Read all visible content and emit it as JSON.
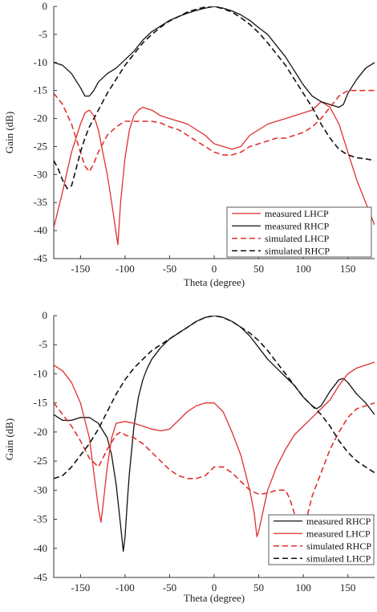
{
  "chart_data": [
    {
      "type": "line",
      "xlabel": "Theta (degree)",
      "ylabel": "Gain (dB)",
      "xlim": [
        -180,
        180
      ],
      "ylim": [
        -45,
        0
      ],
      "xticks": [
        -150,
        -100,
        -50,
        0,
        50,
        100,
        150
      ],
      "yticks": [
        0,
        -5,
        -10,
        -15,
        -20,
        -25,
        -30,
        -35,
        -40,
        -45
      ],
      "grid": false,
      "legend_position": "bottom-right",
      "series": [
        {
          "name": "measured LHCP",
          "color": "#e03030",
          "dash": "solid",
          "x": [
            -180,
            -170,
            -160,
            -150,
            -145,
            -140,
            -135,
            -130,
            -125,
            -120,
            -115,
            -110,
            -108,
            -105,
            -100,
            -95,
            -90,
            -85,
            -80,
            -70,
            -60,
            -50,
            -40,
            -30,
            -20,
            -10,
            0,
            10,
            20,
            30,
            40,
            50,
            60,
            70,
            80,
            90,
            100,
            110,
            120,
            130,
            140,
            150,
            160,
            170,
            180
          ],
          "y": [
            -39.5,
            -33,
            -26,
            -21,
            -19,
            -18.5,
            -19.5,
            -22,
            -26,
            -30,
            -35,
            -40.5,
            -42.5,
            -35,
            -27,
            -22,
            -19.5,
            -18.5,
            -18,
            -18.5,
            -19.5,
            -20,
            -20.5,
            -21,
            -22,
            -23,
            -24.5,
            -25,
            -25.5,
            -25,
            -23,
            -22,
            -21,
            -20.5,
            -20,
            -19.5,
            -19,
            -18.5,
            -17,
            -18,
            -21,
            -26,
            -31,
            -35,
            -39
          ]
        },
        {
          "name": "measured RHCP",
          "color": "#111111",
          "dash": "solid",
          "x": [
            -180,
            -170,
            -160,
            -150,
            -145,
            -140,
            -135,
            -130,
            -120,
            -110,
            -100,
            -90,
            -80,
            -70,
            -60,
            -50,
            -40,
            -30,
            -20,
            -10,
            0,
            10,
            20,
            30,
            40,
            50,
            60,
            70,
            80,
            90,
            100,
            110,
            120,
            130,
            140,
            145,
            150,
            160,
            170,
            180
          ],
          "y": [
            -10,
            -10.5,
            -12,
            -14.5,
            -16,
            -16,
            -15,
            -13.5,
            -12,
            -11,
            -9.5,
            -8,
            -6,
            -4.5,
            -3.5,
            -2.5,
            -1.8,
            -1.2,
            -0.7,
            -0.3,
            0,
            -0.3,
            -0.8,
            -1.5,
            -2.5,
            -3.8,
            -5,
            -7,
            -9,
            -11.5,
            -14,
            -16,
            -17,
            -17.5,
            -18,
            -17.5,
            -15.5,
            -13,
            -11,
            -10
          ]
        },
        {
          "name": "simulated LHCP",
          "color": "#e03030",
          "dash": "dashed",
          "x": [
            -180,
            -170,
            -160,
            -150,
            -145,
            -140,
            -135,
            -130,
            -120,
            -110,
            -100,
            -90,
            -80,
            -70,
            -60,
            -50,
            -40,
            -30,
            -20,
            -10,
            0,
            10,
            20,
            30,
            40,
            50,
            60,
            70,
            80,
            90,
            100,
            110,
            120,
            130,
            140,
            150,
            160,
            170,
            180
          ],
          "y": [
            -15.5,
            -17.5,
            -21,
            -26,
            -28.5,
            -29.5,
            -28,
            -26,
            -23,
            -21.5,
            -20.5,
            -20.5,
            -20.5,
            -20.5,
            -20.8,
            -21.5,
            -22,
            -23,
            -24,
            -25,
            -26,
            -26.5,
            -26.5,
            -26,
            -25,
            -24.5,
            -24,
            -23.5,
            -23.5,
            -23,
            -22.5,
            -21.5,
            -20,
            -18,
            -16,
            -15,
            -15,
            -15,
            -15
          ]
        },
        {
          "name": "simulated RHCP",
          "color": "#111111",
          "dash": "dashed",
          "x": [
            -180,
            -175,
            -170,
            -165,
            -160,
            -155,
            -150,
            -145,
            -140,
            -130,
            -120,
            -110,
            -100,
            -90,
            -80,
            -70,
            -60,
            -50,
            -40,
            -30,
            -20,
            -10,
            0,
            10,
            20,
            30,
            40,
            50,
            60,
            70,
            80,
            90,
            100,
            110,
            120,
            130,
            140,
            150,
            160,
            170,
            180
          ],
          "y": [
            -27.5,
            -29,
            -31,
            -32.5,
            -32,
            -29,
            -26,
            -23.5,
            -21.5,
            -18.5,
            -15.5,
            -13,
            -10.5,
            -8.5,
            -6.5,
            -5,
            -3.7,
            -2.6,
            -1.8,
            -1,
            -0.5,
            -0.1,
            0,
            -0.4,
            -1,
            -2,
            -3.2,
            -4.7,
            -6.5,
            -8.5,
            -10.5,
            -13,
            -15.5,
            -18,
            -21,
            -23.5,
            -25.5,
            -26.5,
            -27,
            -27.2,
            -27.5
          ]
        }
      ]
    },
    {
      "type": "line",
      "xlabel": "Theta (degree)",
      "ylabel": "Gain (dB)",
      "xlim": [
        -180,
        180
      ],
      "ylim": [
        -45,
        0
      ],
      "xticks": [
        -150,
        -100,
        -50,
        0,
        50,
        100,
        150
      ],
      "yticks": [
        0,
        -5,
        -10,
        -15,
        -20,
        -25,
        -30,
        -35,
        -40,
        -45
      ],
      "grid": false,
      "legend_position": "bottom-right",
      "series": [
        {
          "name": "measured RHCP",
          "color": "#111111",
          "dash": "solid",
          "x": [
            -180,
            -170,
            -160,
            -150,
            -140,
            -130,
            -120,
            -115,
            -110,
            -105,
            -102,
            -100,
            -97,
            -95,
            -90,
            -85,
            -80,
            -75,
            -70,
            -60,
            -50,
            -40,
            -30,
            -20,
            -10,
            0,
            10,
            20,
            30,
            40,
            50,
            60,
            70,
            80,
            90,
            100,
            110,
            115,
            120,
            130,
            140,
            145,
            150,
            160,
            170,
            180
          ],
          "y": [
            -17,
            -18,
            -18,
            -17.5,
            -17.5,
            -18.5,
            -21,
            -24,
            -29,
            -36,
            -40.5,
            -38,
            -31,
            -27,
            -19,
            -14,
            -11,
            -9,
            -7.5,
            -5.5,
            -4,
            -3,
            -2,
            -1,
            -0.3,
            0,
            -0.3,
            -1,
            -2,
            -3.5,
            -5.5,
            -7.5,
            -9,
            -10.5,
            -12,
            -14,
            -15.5,
            -16,
            -15.5,
            -13,
            -11,
            -10.8,
            -11.5,
            -13.5,
            -15,
            -17
          ]
        },
        {
          "name": "measured LHCP",
          "color": "#e03030",
          "dash": "solid",
          "x": [
            -180,
            -170,
            -160,
            -150,
            -140,
            -135,
            -130,
            -127,
            -125,
            -120,
            -115,
            -110,
            -100,
            -90,
            -80,
            -70,
            -60,
            -50,
            -40,
            -30,
            -20,
            -10,
            0,
            10,
            20,
            30,
            40,
            45,
            48,
            50,
            55,
            60,
            70,
            80,
            90,
            100,
            110,
            120,
            130,
            140,
            150,
            160,
            170,
            180
          ],
          "y": [
            -8.5,
            -9.5,
            -11.5,
            -15,
            -21,
            -27,
            -33,
            -35.5,
            -33,
            -26,
            -21,
            -18.5,
            -18.2,
            -18.5,
            -19,
            -19.5,
            -19.8,
            -19.5,
            -18,
            -16.5,
            -15.5,
            -15,
            -15,
            -16.5,
            -20,
            -24,
            -30,
            -34,
            -38,
            -37,
            -33.5,
            -30,
            -26,
            -23,
            -20.5,
            -19,
            -17.5,
            -16,
            -14.5,
            -12,
            -10,
            -9,
            -8.5,
            -8
          ]
        },
        {
          "name": "simulated RHCP",
          "color": "#e03030",
          "dash": "dashed",
          "x": [
            -180,
            -170,
            -160,
            -150,
            -140,
            -130,
            -120,
            -110,
            -105,
            -100,
            -90,
            -80,
            -70,
            -60,
            -50,
            -40,
            -30,
            -20,
            -10,
            0,
            10,
            20,
            30,
            40,
            50,
            60,
            70,
            80,
            85,
            90,
            95,
            100,
            105,
            110,
            120,
            130,
            140,
            150,
            160,
            170,
            180
          ],
          "y": [
            -15,
            -17,
            -19,
            -21.5,
            -24.5,
            -26,
            -23,
            -20.5,
            -20,
            -20.5,
            -21,
            -22,
            -23.5,
            -25,
            -26.5,
            -27.5,
            -28,
            -28,
            -27.5,
            -26,
            -26,
            -27,
            -28.5,
            -30,
            -30.7,
            -30.5,
            -30,
            -30,
            -31.5,
            -34,
            -37,
            -38,
            -34,
            -31,
            -27,
            -23,
            -20,
            -17.5,
            -16,
            -15.5,
            -15
          ]
        },
        {
          "name": "simulated LHCP",
          "color": "#111111",
          "dash": "dashed",
          "x": [
            -180,
            -170,
            -160,
            -150,
            -140,
            -130,
            -120,
            -110,
            -100,
            -90,
            -80,
            -70,
            -60,
            -50,
            -40,
            -30,
            -20,
            -10,
            0,
            10,
            20,
            30,
            40,
            50,
            60,
            70,
            80,
            90,
            100,
            110,
            120,
            130,
            140,
            150,
            160,
            170,
            180
          ],
          "y": [
            -28,
            -27.5,
            -26,
            -24,
            -22,
            -19.5,
            -16.5,
            -13.5,
            -11,
            -9,
            -7.5,
            -6,
            -5,
            -4,
            -3,
            -2,
            -1,
            -0.3,
            0,
            -0.3,
            -1,
            -2,
            -3,
            -4.3,
            -6,
            -8,
            -10,
            -12,
            -14,
            -15.5,
            -17,
            -19,
            -21.5,
            -23.5,
            -25,
            -26,
            -27
          ]
        }
      ]
    }
  ]
}
